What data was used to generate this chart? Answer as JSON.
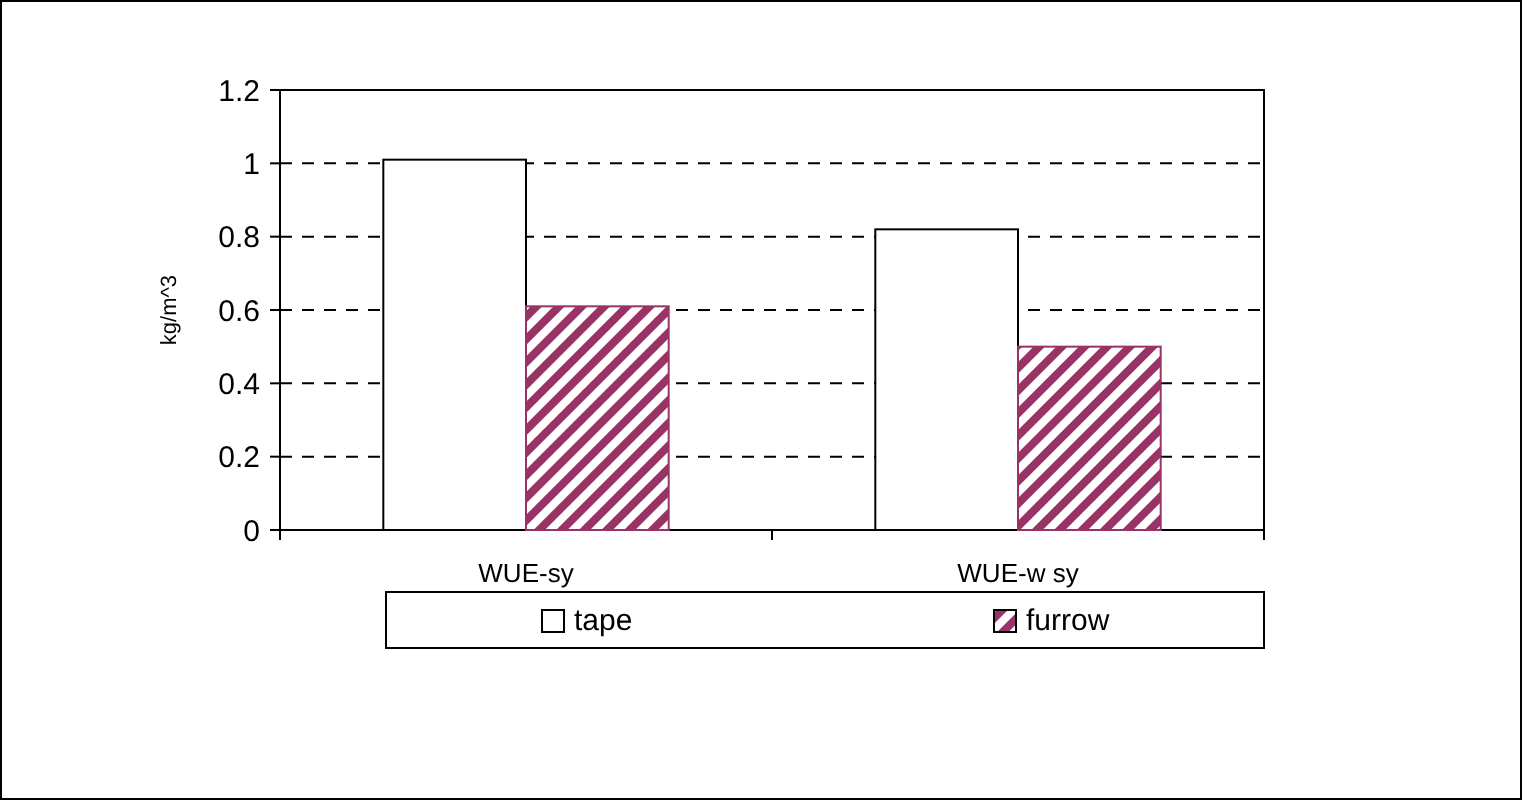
{
  "chart_data": {
    "type": "bar",
    "ylabel": "kg/m^3",
    "categories": [
      "WUE-sy",
      "WUE-w sy"
    ],
    "series": [
      {
        "name": "tape",
        "color": "#ffffff",
        "values": [
          1.01,
          0.82
        ]
      },
      {
        "name": "furrow",
        "color": "#993366",
        "values": [
          0.61,
          0.5
        ]
      }
    ],
    "ylim": [
      0,
      1.2
    ],
    "yticks": [
      0,
      0.2,
      0.4,
      0.6,
      0.8,
      1,
      1.2
    ],
    "grid": "y",
    "legend": "bottom"
  }
}
